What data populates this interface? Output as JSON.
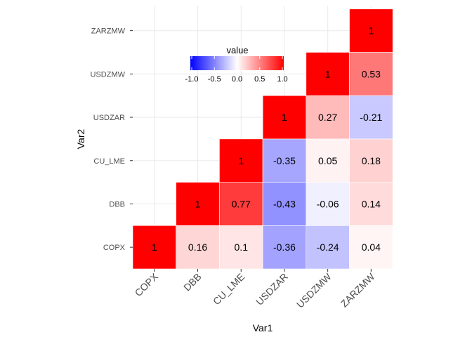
{
  "chart_data": {
    "type": "heatmap",
    "xlabel": "Var1",
    "ylabel": "Var2",
    "x_categories": [
      "COPX",
      "DBB",
      "CU_LME",
      "USDZAR",
      "USDZMW",
      "ZARZMW"
    ],
    "y_categories": [
      "COPX",
      "DBB",
      "CU_LME",
      "USDZAR",
      "USDZMW",
      "ZARZMW"
    ],
    "cells": [
      {
        "x": "COPX",
        "y": "COPX",
        "value": 1,
        "label": "1"
      },
      {
        "x": "DBB",
        "y": "COPX",
        "value": 0.16,
        "label": "0.16"
      },
      {
        "x": "CU_LME",
        "y": "COPX",
        "value": 0.1,
        "label": "0.1"
      },
      {
        "x": "USDZAR",
        "y": "COPX",
        "value": -0.36,
        "label": "-0.36"
      },
      {
        "x": "USDZMW",
        "y": "COPX",
        "value": -0.24,
        "label": "-0.24"
      },
      {
        "x": "ZARZMW",
        "y": "COPX",
        "value": 0.04,
        "label": "0.04"
      },
      {
        "x": "DBB",
        "y": "DBB",
        "value": 1,
        "label": "1"
      },
      {
        "x": "CU_LME",
        "y": "DBB",
        "value": 0.77,
        "label": "0.77"
      },
      {
        "x": "USDZAR",
        "y": "DBB",
        "value": -0.43,
        "label": "-0.43"
      },
      {
        "x": "USDZMW",
        "y": "DBB",
        "value": -0.06,
        "label": "-0.06"
      },
      {
        "x": "ZARZMW",
        "y": "DBB",
        "value": 0.14,
        "label": "0.14"
      },
      {
        "x": "CU_LME",
        "y": "CU_LME",
        "value": 1,
        "label": "1"
      },
      {
        "x": "USDZAR",
        "y": "CU_LME",
        "value": -0.35,
        "label": "-0.35"
      },
      {
        "x": "USDZMW",
        "y": "CU_LME",
        "value": 0.05,
        "label": "0.05"
      },
      {
        "x": "ZARZMW",
        "y": "CU_LME",
        "value": 0.18,
        "label": "0.18"
      },
      {
        "x": "USDZAR",
        "y": "USDZAR",
        "value": 1,
        "label": "1"
      },
      {
        "x": "USDZMW",
        "y": "USDZAR",
        "value": 0.27,
        "label": "0.27"
      },
      {
        "x": "ZARZMW",
        "y": "USDZAR",
        "value": -0.21,
        "label": "-0.21"
      },
      {
        "x": "USDZMW",
        "y": "USDZMW",
        "value": 1,
        "label": "1"
      },
      {
        "x": "ZARZMW",
        "y": "USDZMW",
        "value": 0.53,
        "label": "0.53"
      },
      {
        "x": "ZARZMW",
        "y": "ZARZMW",
        "value": 1,
        "label": "1"
      }
    ],
    "legend": {
      "title": "value",
      "ticks": [
        "-1.0",
        "-0.5",
        "0.0",
        "0.5",
        "1.0"
      ],
      "tick_values": [
        -1,
        -0.5,
        0,
        0.5,
        1
      ],
      "range": [
        -1,
        1
      ],
      "placement": "top-center",
      "orientation": "horizontal"
    },
    "color_scale": {
      "low": "#0000ff",
      "mid": "#ffffff",
      "high": "#ff0000"
    },
    "grid": true
  }
}
